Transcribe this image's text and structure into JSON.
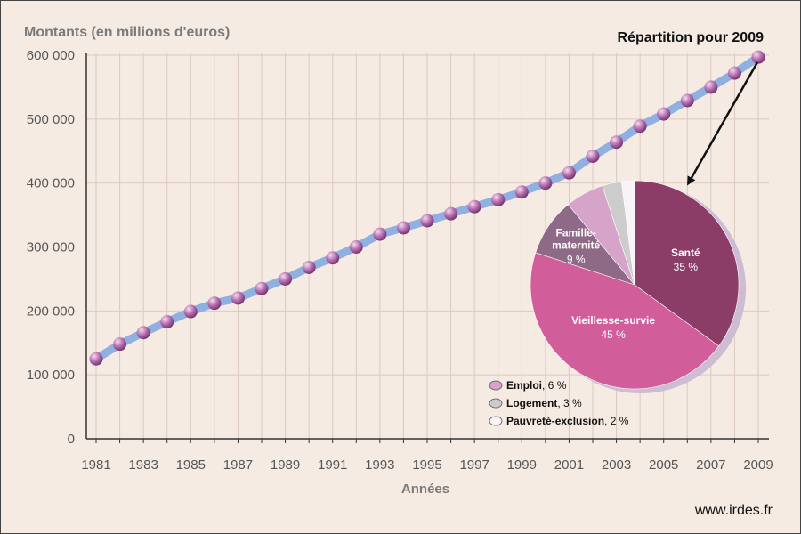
{
  "chart_data": [
    {
      "type": "line",
      "ylabel": "Montants (en millions d'euros)",
      "xlabel": "Années",
      "x": [
        1981,
        1982,
        1983,
        1984,
        1985,
        1986,
        1987,
        1988,
        1989,
        1990,
        1991,
        1992,
        1993,
        1994,
        1995,
        1996,
        1997,
        1998,
        1999,
        2000,
        2001,
        2002,
        2003,
        2004,
        2005,
        2006,
        2007,
        2008,
        2009
      ],
      "values": [
        125000,
        148000,
        166000,
        183000,
        199000,
        212000,
        220000,
        235000,
        250000,
        268000,
        283000,
        300000,
        320000,
        330000,
        341000,
        352000,
        363000,
        374000,
        386000,
        400000,
        416000,
        442000,
        464000,
        489000,
        508000,
        529000,
        550000,
        572000,
        597000
      ],
      "x_ticks": [
        "1981",
        "1983",
        "1985",
        "1987",
        "1989",
        "1991",
        "1993",
        "1995",
        "1997",
        "1999",
        "2001",
        "2003",
        "2005",
        "2007",
        "2009"
      ],
      "y_ticks": [
        "0",
        "100 000",
        "200 000",
        "300 000",
        "400 000",
        "500 000",
        "600 000"
      ],
      "ylim": [
        0,
        600000
      ],
      "grid": true,
      "colors": {
        "line": "#8fb0e0",
        "marker": "#a45aa0",
        "grid": "#dccac0"
      }
    },
    {
      "type": "pie",
      "title": "Répartition pour 2009",
      "unit": "%",
      "slices": [
        {
          "label": "Santé",
          "value": 35,
          "value_text": "35 %",
          "color": "#8b3d68",
          "in_legend": false
        },
        {
          "label": "Vieillesse-survie",
          "value": 45,
          "value_text": "45 %",
          "color": "#d15d9a",
          "in_legend": false
        },
        {
          "label": "Famille-maternité",
          "label_lines": [
            "Famille-",
            "maternité"
          ],
          "value": 9,
          "value_text": "9 %",
          "color": "#8e6a86",
          "in_legend": false
        },
        {
          "label": "Emploi",
          "value": 6,
          "value_text": "6 %",
          "color": "#d5a4c8",
          "in_legend": true
        },
        {
          "label": "Logement",
          "value": 3,
          "value_text": "3 %",
          "color": "#cccccc",
          "in_legend": true
        },
        {
          "label": "Pauvreté-exclusion",
          "value": 2,
          "value_text": "2 %",
          "color": "#f7f3f7",
          "in_legend": true
        }
      ]
    }
  ],
  "footer": {
    "source": "www.irdes.fr"
  }
}
